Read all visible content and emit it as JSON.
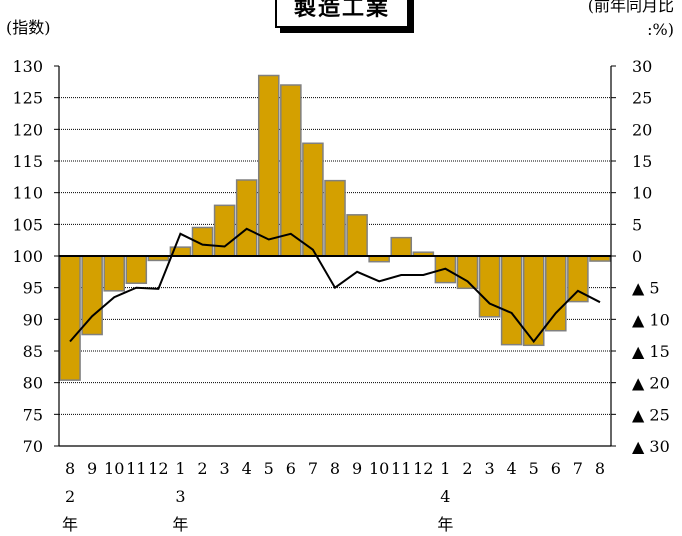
{
  "title": "製造工業",
  "left_unit": "(指数)",
  "right_unit_line1": "(前年同月比",
  "right_unit_line2": ":%)",
  "chart_data": {
    "type": "bar",
    "categories": [
      "8",
      "9",
      "10",
      "11",
      "12",
      "1",
      "2",
      "3",
      "4",
      "5",
      "6",
      "7",
      "8",
      "9",
      "10",
      "11",
      "12",
      "1",
      "2",
      "3",
      "4",
      "5",
      "6",
      "7",
      "8"
    ],
    "year_labels": [
      {
        "index": 0,
        "digit": "2",
        "suffix": "年"
      },
      {
        "index": 5,
        "digit": "3",
        "suffix": "年"
      },
      {
        "index": 17,
        "digit": "4",
        "suffix": "年"
      }
    ],
    "series": [
      {
        "role": "bar",
        "axis": "right",
        "color": "#d4a000",
        "values": [
          -19.6,
          -12.4,
          -5.5,
          -4.3,
          -0.7,
          1.4,
          4.5,
          8.0,
          12.0,
          28.5,
          27.0,
          17.8,
          11.9,
          6.5,
          -0.9,
          2.9,
          0.6,
          -4.2,
          -5.1,
          -9.6,
          -14.0,
          -14.1,
          -11.8,
          -7.2,
          -0.8
        ]
      },
      {
        "role": "line",
        "axis": "left",
        "color": "#000000",
        "values": [
          86.5,
          90.5,
          93.5,
          95.0,
          94.8,
          103.5,
          101.8,
          101.5,
          104.3,
          102.6,
          103.5,
          101.0,
          95.0,
          97.5,
          96.0,
          97.0,
          97.0,
          98.0,
          96.0,
          92.5,
          91.0,
          86.5,
          91.0,
          94.5,
          92.7
        ]
      }
    ],
    "y_left": {
      "min": 70,
      "max": 130,
      "step": 5,
      "ticks": [
        "70",
        "75",
        "80",
        "85",
        "90",
        "95",
        "100",
        "105",
        "110",
        "115",
        "120",
        "125",
        "130"
      ]
    },
    "y_right": {
      "min": -30,
      "max": 30,
      "step": 5,
      "ticks": [
        "▲ 30",
        "▲ 25",
        "▲ 20",
        "▲ 15",
        "▲ 10",
        "▲ 5",
        "0",
        "5",
        "10",
        "15",
        "20",
        "25",
        "30"
      ]
    },
    "grid": true
  }
}
